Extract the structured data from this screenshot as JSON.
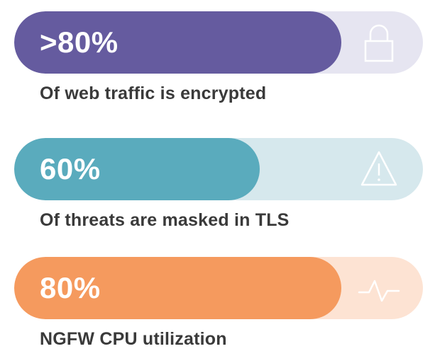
{
  "stats": [
    {
      "value": ">80%",
      "level": 0.8,
      "caption": "Of web traffic is encrypted",
      "icon": "lock-icon",
      "fill_color": "#655b9f",
      "track_color": "#e6e5f1"
    },
    {
      "value": "60%",
      "level": 0.6,
      "caption": "Of threats are masked in TLS",
      "icon": "warning-icon",
      "fill_color": "#5aabbd",
      "track_color": "#d6e8ed"
    },
    {
      "value": "80%",
      "level": 0.8,
      "caption": "NGFW CPU utilization",
      "icon": "pulse-icon",
      "fill_color": "#f59a5e",
      "track_color": "#fde3d3"
    }
  ]
}
